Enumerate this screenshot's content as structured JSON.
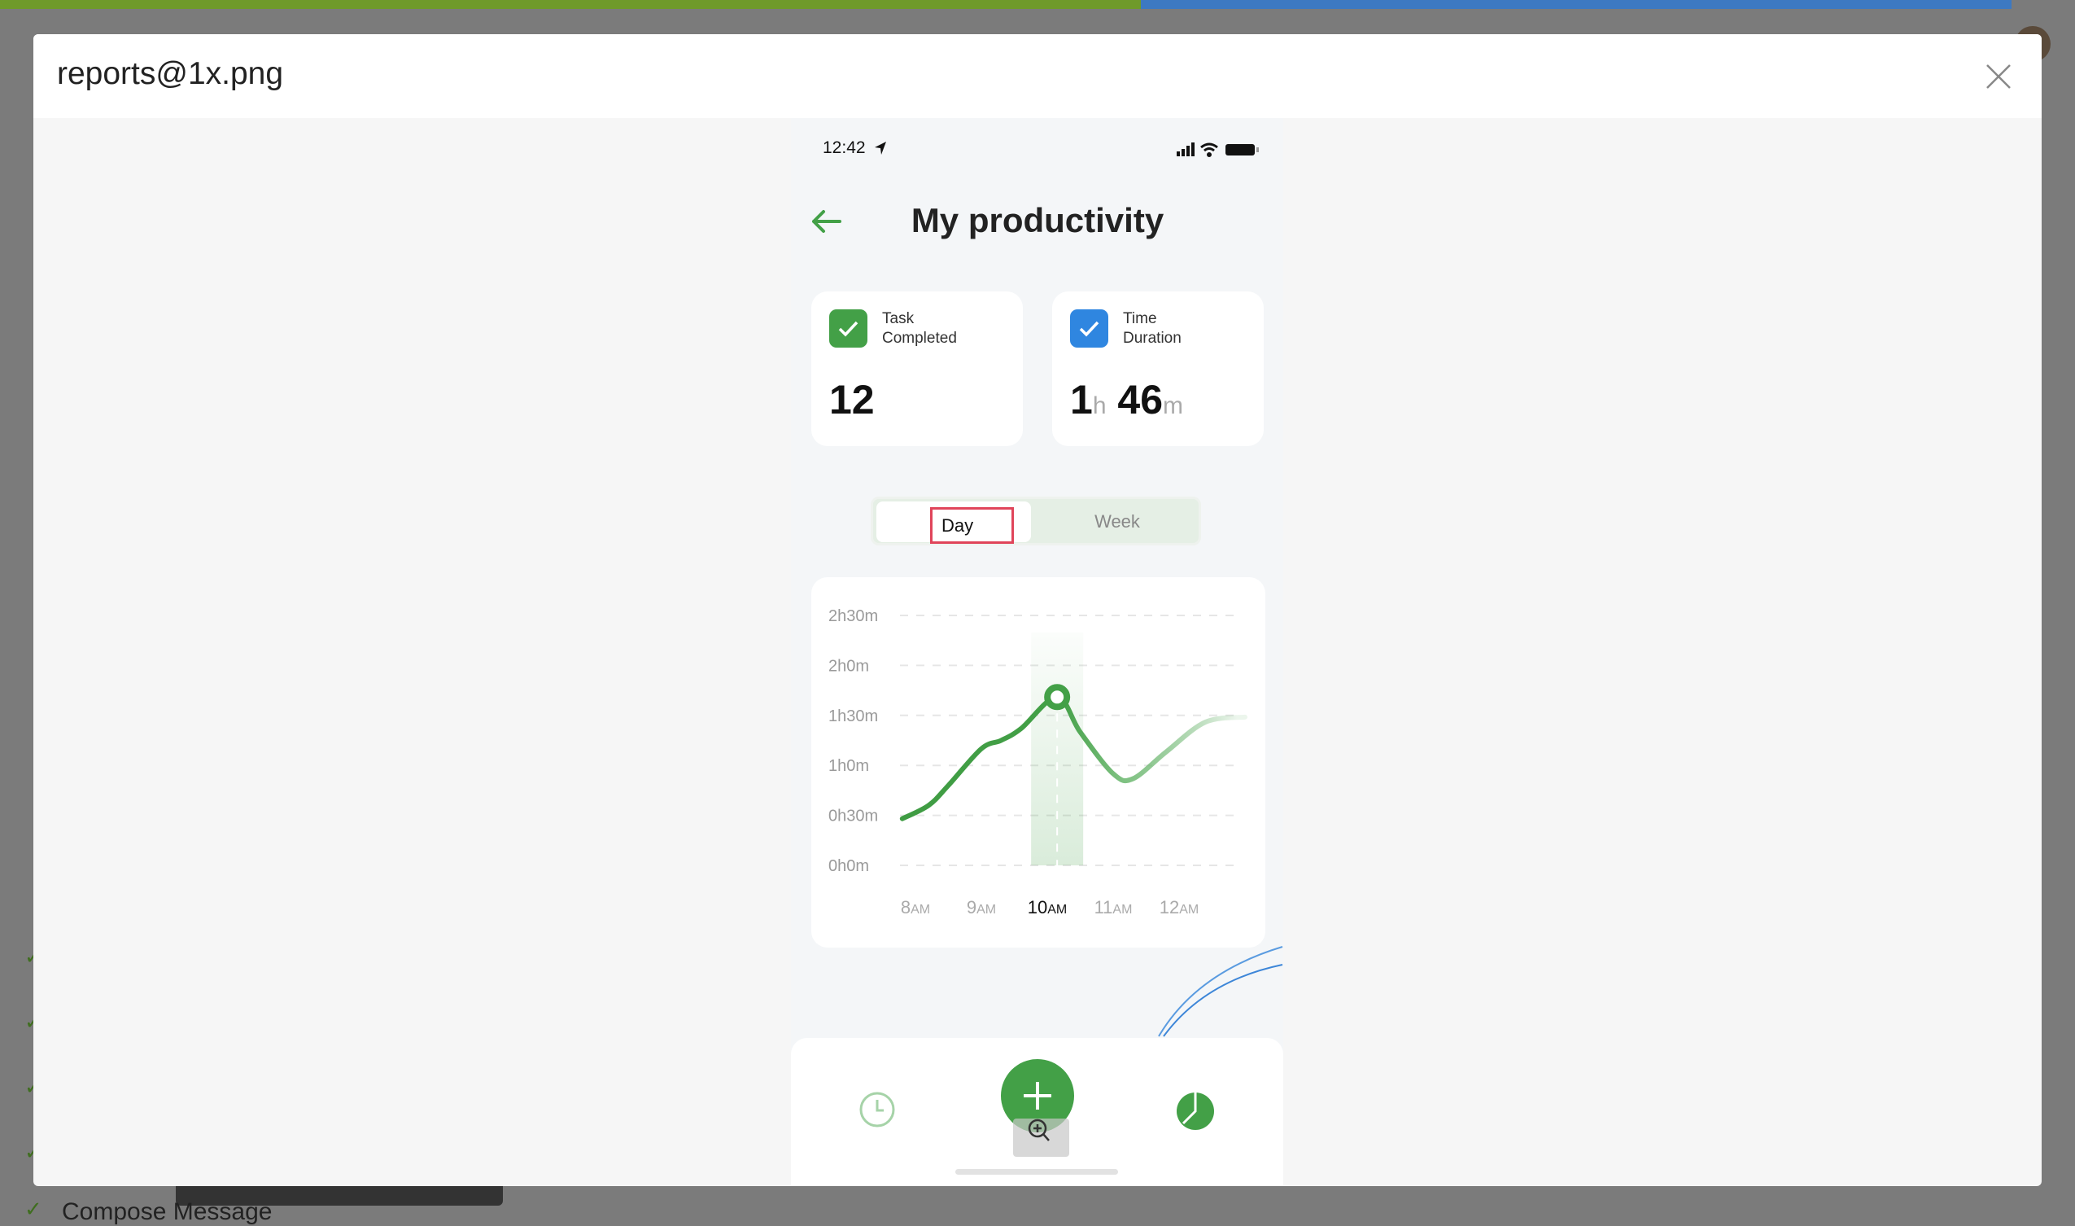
{
  "modal": {
    "title": "reports@1x.png"
  },
  "background": {
    "compose_label": "Compose Message"
  },
  "status_bar": {
    "time": "12:42"
  },
  "header": {
    "title": "My productivity"
  },
  "stats": {
    "tasks": {
      "label_line1": "Task",
      "label_line2": "Completed",
      "value": "12"
    },
    "time": {
      "label_line1": "Time",
      "label_line2": "Duration",
      "hours": "1",
      "hours_unit": "h",
      "minutes": "46",
      "minutes_unit": "m"
    }
  },
  "toggle": {
    "day": "Day",
    "week": "Week",
    "selected": "Day"
  },
  "colors": {
    "green": "#43a047",
    "blue": "#2f86e0",
    "highlight": "#e0455a"
  },
  "chart_data": {
    "type": "line",
    "y_tick_labels": [
      "0h0m",
      "0h30m",
      "1h0m",
      "1h30m",
      "2h0m",
      "2h30m"
    ],
    "x_tick_labels": [
      {
        "num": "8",
        "suffix": "AM"
      },
      {
        "num": "9",
        "suffix": "AM"
      },
      {
        "num": "10",
        "suffix": "AM"
      },
      {
        "num": "11",
        "suffix": "AM"
      },
      {
        "num": "12",
        "suffix": "AM"
      }
    ],
    "ylim_minutes": [
      0,
      150
    ],
    "x_hours": [
      8,
      12
    ],
    "selected_x": "10AM",
    "grid": true,
    "points": [
      [
        7.8,
        28
      ],
      [
        8.2,
        36
      ],
      [
        8.5,
        48
      ],
      [
        9.0,
        70
      ],
      [
        9.3,
        75
      ],
      [
        9.6,
        82
      ],
      [
        10.15,
        101
      ],
      [
        10.5,
        80
      ],
      [
        11.0,
        55
      ],
      [
        11.3,
        52
      ],
      [
        11.8,
        68
      ],
      [
        12.4,
        86
      ],
      [
        13.0,
        89
      ]
    ],
    "highlighted_point": [
      10.15,
      101
    ]
  },
  "nav": {
    "icons": [
      "clock-icon",
      "plus-icon",
      "pie-chart-icon"
    ]
  }
}
